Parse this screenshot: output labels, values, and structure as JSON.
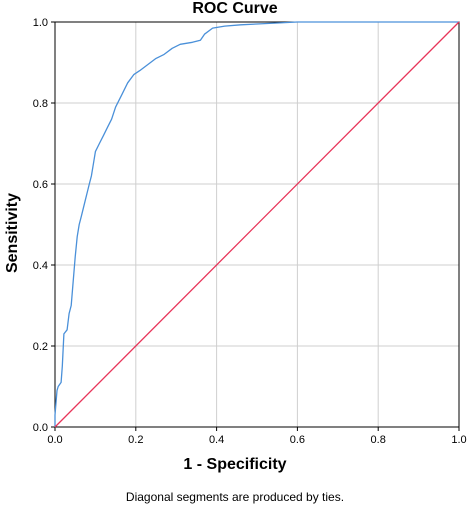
{
  "chart_data": {
    "type": "line",
    "title": "ROC Curve",
    "xlabel": "1 - Specificity",
    "ylabel": "Sensitivity",
    "footnote": "Diagonal segments are produced by ties.",
    "xlim": [
      0,
      1
    ],
    "ylim": [
      0,
      1
    ],
    "x_ticks": [
      "0.0",
      "0.2",
      "0.4",
      "0.6",
      "0.8",
      "1.0"
    ],
    "y_ticks": [
      "0.0",
      "0.2",
      "0.4",
      "0.6",
      "0.8",
      "1.0"
    ],
    "grid": true,
    "series": [
      {
        "color": "#4a90d9",
        "points": [
          [
            0.0,
            0.0
          ],
          [
            0.0,
            0.03
          ],
          [
            0.005,
            0.09
          ],
          [
            0.008,
            0.1
          ],
          [
            0.015,
            0.11
          ],
          [
            0.018,
            0.15
          ],
          [
            0.022,
            0.23
          ],
          [
            0.03,
            0.24
          ],
          [
            0.035,
            0.28
          ],
          [
            0.04,
            0.3
          ],
          [
            0.045,
            0.36
          ],
          [
            0.05,
            0.42
          ],
          [
            0.055,
            0.47
          ],
          [
            0.06,
            0.5
          ],
          [
            0.065,
            0.52
          ],
          [
            0.07,
            0.54
          ],
          [
            0.075,
            0.56
          ],
          [
            0.08,
            0.58
          ],
          [
            0.085,
            0.6
          ],
          [
            0.09,
            0.62
          ],
          [
            0.095,
            0.65
          ],
          [
            0.1,
            0.68
          ],
          [
            0.11,
            0.7
          ],
          [
            0.12,
            0.72
          ],
          [
            0.13,
            0.74
          ],
          [
            0.14,
            0.76
          ],
          [
            0.15,
            0.79
          ],
          [
            0.165,
            0.82
          ],
          [
            0.18,
            0.85
          ],
          [
            0.195,
            0.87
          ],
          [
            0.21,
            0.88
          ],
          [
            0.23,
            0.895
          ],
          [
            0.25,
            0.91
          ],
          [
            0.27,
            0.92
          ],
          [
            0.29,
            0.935
          ],
          [
            0.31,
            0.945
          ],
          [
            0.34,
            0.95
          ],
          [
            0.36,
            0.955
          ],
          [
            0.37,
            0.97
          ],
          [
            0.39,
            0.985
          ],
          [
            0.42,
            0.99
          ],
          [
            0.46,
            0.993
          ],
          [
            0.5,
            0.995
          ],
          [
            0.6,
            1.0
          ],
          [
            1.0,
            1.0
          ]
        ]
      },
      {
        "color": "#e8355a",
        "points": [
          [
            0,
            0
          ],
          [
            1,
            1
          ]
        ]
      }
    ]
  }
}
